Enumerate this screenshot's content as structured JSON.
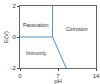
{
  "chart_data": {
    "type": "line",
    "x_label": "pH",
    "y_label": "E(V)",
    "series": [
      {
        "color": "#4a8fc9",
        "x": [
          0,
          6
        ],
        "values": [
          0,
          0
        ]
      },
      {
        "color": "#4a8fc9",
        "x": [
          6,
          6
        ],
        "values": [
          0,
          2
        ]
      },
      {
        "color": "#4a8fc9",
        "x": [
          6,
          8.5
        ],
        "values": [
          0,
          -2
        ]
      }
    ],
    "annotations": [
      {
        "text": "Passivation",
        "x": 3,
        "y": 0.8
      },
      {
        "text": "Corrosion",
        "x": 10.5,
        "y": 0.5
      },
      {
        "text": "Immunity",
        "x": 3,
        "y": -1
      }
    ],
    "xlim": [
      0,
      14
    ],
    "xticks": [
      0,
      7,
      14
    ],
    "ylim": [
      -2,
      2
    ],
    "yticks": [
      -2,
      0,
      2
    ],
    "grid": false
  }
}
